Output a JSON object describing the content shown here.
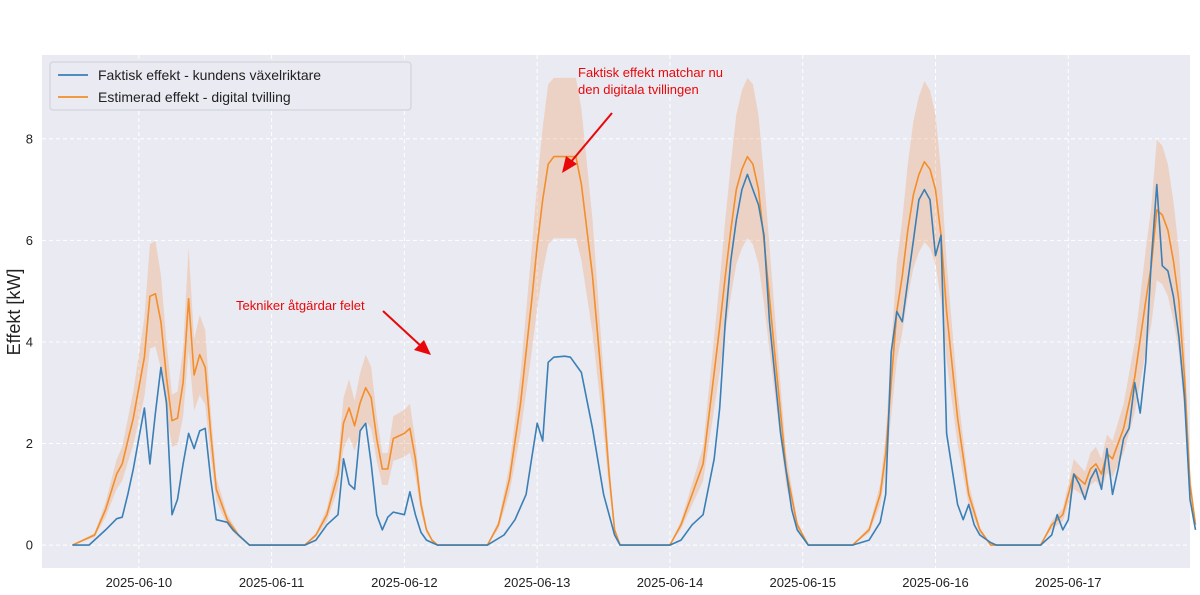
{
  "chart_data": {
    "type": "line",
    "title": "",
    "xlabel": "",
    "ylabel": "Effekt [kW]",
    "x_ticks": [
      "2025-06-10",
      "2025-06-11",
      "2025-06-12",
      "2025-06-13",
      "2025-06-14",
      "2025-06-15",
      "2025-06-16",
      "2025-06-17"
    ],
    "y_ticks": [
      0,
      2,
      4,
      6,
      8
    ],
    "ylim": [
      -0.45,
      9.65
    ],
    "xlim": [
      "2025-06-09 06:30",
      "2025-06-17 22:00"
    ],
    "grid": true,
    "legend_position": "top-left",
    "colors": {
      "actual": "#3a7fb5",
      "estimated": "#f28e2b",
      "band": "#f2a773",
      "background": "#eaeaf2",
      "annotation": "#e8080a"
    },
    "series": [
      {
        "name": "Faktisk effekt - kundens växelriktare",
        "points": [
          [
            "2025-06-09 12:00",
            0
          ],
          [
            "2025-06-09 15:00",
            0
          ],
          [
            "2025-06-09 18:00",
            0.3
          ],
          [
            "2025-06-09 20:00",
            0.52
          ],
          [
            "2025-06-09 21:00",
            0.55
          ],
          [
            "2025-06-09 22:00",
            1.0
          ],
          [
            "2025-06-09 23:00",
            1.5
          ],
          [
            "2025-06-10 00:00",
            2.1
          ],
          [
            "2025-06-10 01:00",
            2.7
          ],
          [
            "2025-06-10 02:00",
            1.6
          ],
          [
            "2025-06-10 03:00",
            2.6
          ],
          [
            "2025-06-10 04:00",
            3.5
          ],
          [
            "2025-06-10 05:00",
            2.8
          ],
          [
            "2025-06-10 06:00",
            0.6
          ],
          [
            "2025-06-10 07:00",
            0.9
          ],
          [
            "2025-06-10 08:00",
            1.6
          ],
          [
            "2025-06-10 09:00",
            2.2
          ],
          [
            "2025-06-10 10:00",
            1.9
          ],
          [
            "2025-06-10 11:00",
            2.25
          ],
          [
            "2025-06-10 12:00",
            2.3
          ],
          [
            "2025-06-10 13:00",
            1.3
          ],
          [
            "2025-06-10 14:00",
            0.5
          ],
          [
            "2025-06-10 16:00",
            0.45
          ],
          [
            "2025-06-10 17:00",
            0.3
          ],
          [
            "2025-06-10 19:00",
            0.1
          ],
          [
            "2025-06-10 20:00",
            0
          ],
          [
            "2025-06-10 21:00",
            0
          ],
          [
            "2025-06-11 06:00",
            0
          ],
          [
            "2025-06-11 08:00",
            0.1
          ],
          [
            "2025-06-11 10:00",
            0.4
          ],
          [
            "2025-06-11 12:00",
            0.6
          ],
          [
            "2025-06-11 13:00",
            1.7
          ],
          [
            "2025-06-11 14:00",
            1.2
          ],
          [
            "2025-06-11 15:00",
            1.1
          ],
          [
            "2025-06-11 16:00",
            2.25
          ],
          [
            "2025-06-11 17:00",
            2.4
          ],
          [
            "2025-06-11 18:00",
            1.6
          ],
          [
            "2025-06-11 19:00",
            0.6
          ],
          [
            "2025-06-11 20:00",
            0.3
          ],
          [
            "2025-06-11 21:00",
            0.55
          ],
          [
            "2025-06-11 22:00",
            0.65
          ],
          [
            "2025-06-12 00:00",
            0.6
          ],
          [
            "2025-06-12 01:00",
            1.05
          ],
          [
            "2025-06-12 02:00",
            0.6
          ],
          [
            "2025-06-12 03:00",
            0.25
          ],
          [
            "2025-06-12 04:00",
            0.1
          ],
          [
            "2025-06-12 05:00",
            0.05
          ],
          [
            "2025-06-12 06:00",
            0
          ],
          [
            "2025-06-12 15:00",
            0
          ],
          [
            "2025-06-12 18:00",
            0.2
          ],
          [
            "2025-06-12 20:00",
            0.5
          ],
          [
            "2025-06-12 22:00",
            1.0
          ],
          [
            "2025-06-12 23:00",
            1.7
          ],
          [
            "2025-06-13 00:00",
            2.4
          ],
          [
            "2025-06-13 01:00",
            2.05
          ],
          [
            "2025-06-13 02:00",
            3.6
          ],
          [
            "2025-06-13 03:00",
            3.7
          ],
          [
            "2025-06-13 05:00",
            3.72
          ],
          [
            "2025-06-13 06:00",
            3.7
          ],
          [
            "2025-06-13 08:00",
            3.4
          ],
          [
            "2025-06-13 10:00",
            2.3
          ],
          [
            "2025-06-13 12:00",
            1.0
          ],
          [
            "2025-06-13 14:00",
            0.2
          ],
          [
            "2025-06-13 15:00",
            0
          ],
          [
            "2025-06-14 00:00",
            0
          ],
          [
            "2025-06-14 02:00",
            0.1
          ],
          [
            "2025-06-14 04:00",
            0.4
          ],
          [
            "2025-06-14 06:00",
            0.6
          ],
          [
            "2025-06-14 08:00",
            1.7
          ],
          [
            "2025-06-14 09:00",
            2.7
          ],
          [
            "2025-06-14 10:00",
            4.4
          ],
          [
            "2025-06-14 11:00",
            5.6
          ],
          [
            "2025-06-14 12:00",
            6.4
          ],
          [
            "2025-06-14 13:00",
            7.0
          ],
          [
            "2025-06-14 14:00",
            7.3
          ],
          [
            "2025-06-14 15:00",
            7.0
          ],
          [
            "2025-06-14 16:00",
            6.7
          ],
          [
            "2025-06-14 17:00",
            6.1
          ],
          [
            "2025-06-14 18:00",
            4.4
          ],
          [
            "2025-06-14 20:00",
            2.2
          ],
          [
            "2025-06-14 22:00",
            0.7
          ],
          [
            "2025-06-14 23:00",
            0.3
          ],
          [
            "2025-06-15 01:00",
            0
          ],
          [
            "2025-06-15 09:00",
            0
          ],
          [
            "2025-06-15 12:00",
            0.1
          ],
          [
            "2025-06-15 14:00",
            0.45
          ],
          [
            "2025-06-15 15:00",
            1.0
          ],
          [
            "2025-06-15 16:00",
            3.8
          ],
          [
            "2025-06-15 17:00",
            4.6
          ],
          [
            "2025-06-15 18:00",
            4.4
          ],
          [
            "2025-06-15 19:00",
            5.2
          ],
          [
            "2025-06-15 20:00",
            6.0
          ],
          [
            "2025-06-15 21:00",
            6.8
          ],
          [
            "2025-06-15 22:00",
            7.0
          ],
          [
            "2025-06-15 23:00",
            6.8
          ],
          [
            "2025-06-16 00:00",
            5.7
          ],
          [
            "2025-06-16 01:00",
            6.1
          ],
          [
            "2025-06-16 02:00",
            2.2
          ],
          [
            "2025-06-16 03:00",
            1.5
          ],
          [
            "2025-06-16 04:00",
            0.8
          ],
          [
            "2025-06-16 05:00",
            0.5
          ],
          [
            "2025-06-16 06:00",
            0.8
          ],
          [
            "2025-06-16 07:00",
            0.4
          ],
          [
            "2025-06-16 08:00",
            0.2
          ],
          [
            "2025-06-16 10:00",
            0.05
          ],
          [
            "2025-06-16 11:00",
            0
          ],
          [
            "2025-06-16 19:00",
            0
          ],
          [
            "2025-06-16 21:00",
            0.2
          ],
          [
            "2025-06-16 22:00",
            0.6
          ],
          [
            "2025-06-16 23:00",
            0.3
          ],
          [
            "2025-06-17 00:00",
            0.5
          ],
          [
            "2025-06-17 01:00",
            1.4
          ],
          [
            "2025-06-17 02:00",
            1.2
          ],
          [
            "2025-06-17 03:00",
            0.9
          ],
          [
            "2025-06-17 04:00",
            1.3
          ],
          [
            "2025-06-17 05:00",
            1.5
          ],
          [
            "2025-06-17 06:00",
            1.1
          ],
          [
            "2025-06-17 07:00",
            1.9
          ],
          [
            "2025-06-17 08:00",
            1.0
          ],
          [
            "2025-06-17 09:00",
            1.5
          ],
          [
            "2025-06-17 10:00",
            2.1
          ],
          [
            "2025-06-17 11:00",
            2.3
          ],
          [
            "2025-06-17 12:00",
            3.2
          ],
          [
            "2025-06-17 13:00",
            2.6
          ],
          [
            "2025-06-17 14:00",
            3.6
          ],
          [
            "2025-06-17 15:00",
            5.6
          ],
          [
            "2025-06-17 16:00",
            7.1
          ],
          [
            "2025-06-17 17:00",
            5.5
          ],
          [
            "2025-06-17 18:00",
            5.4
          ],
          [
            "2025-06-17 19:00",
            4.9
          ],
          [
            "2025-06-17 20:00",
            4.1
          ],
          [
            "2025-06-17 21:00",
            2.9
          ],
          [
            "2025-06-17 22:00",
            0.9
          ],
          [
            "2025-06-17 23:00",
            0.3
          ]
        ]
      },
      {
        "name": "Estimerad effekt - digital tvilling",
        "band": "min/max interval",
        "points": [
          [
            "2025-06-09 12:00",
            0
          ],
          [
            "2025-06-09 16:00",
            0.2
          ],
          [
            "2025-06-09 18:00",
            0.7
          ],
          [
            "2025-06-09 20:00",
            1.4
          ],
          [
            "2025-06-09 21:00",
            1.6
          ],
          [
            "2025-06-09 23:00",
            2.5
          ],
          [
            "2025-06-10 01:00",
            3.7
          ],
          [
            "2025-06-10 02:00",
            4.9
          ],
          [
            "2025-06-10 03:00",
            4.95
          ],
          [
            "2025-06-10 04:00",
            4.4
          ],
          [
            "2025-06-10 05:00",
            3.3
          ],
          [
            "2025-06-10 06:00",
            2.45
          ],
          [
            "2025-06-10 07:00",
            2.5
          ],
          [
            "2025-06-10 08:00",
            3.2
          ],
          [
            "2025-06-10 09:00",
            4.85
          ],
          [
            "2025-06-10 10:00",
            3.35
          ],
          [
            "2025-06-10 11:00",
            3.75
          ],
          [
            "2025-06-10 12:00",
            3.5
          ],
          [
            "2025-06-10 13:00",
            2.2
          ],
          [
            "2025-06-10 14:00",
            1.1
          ],
          [
            "2025-06-10 16:00",
            0.5
          ],
          [
            "2025-06-10 18:00",
            0.2
          ],
          [
            "2025-06-10 20:00",
            0
          ],
          [
            "2025-06-11 06:00",
            0
          ],
          [
            "2025-06-11 08:00",
            0.2
          ],
          [
            "2025-06-11 10:00",
            0.6
          ],
          [
            "2025-06-11 12:00",
            1.4
          ],
          [
            "2025-06-11 13:00",
            2.4
          ],
          [
            "2025-06-11 14:00",
            2.7
          ],
          [
            "2025-06-11 15:00",
            2.35
          ],
          [
            "2025-06-11 16:00",
            2.8
          ],
          [
            "2025-06-11 17:00",
            3.1
          ],
          [
            "2025-06-11 18:00",
            2.9
          ],
          [
            "2025-06-11 19:00",
            2.1
          ],
          [
            "2025-06-11 20:00",
            1.5
          ],
          [
            "2025-06-11 21:00",
            1.5
          ],
          [
            "2025-06-11 22:00",
            2.1
          ],
          [
            "2025-06-12 00:00",
            2.2
          ],
          [
            "2025-06-12 01:00",
            2.3
          ],
          [
            "2025-06-12 02:00",
            1.7
          ],
          [
            "2025-06-12 03:00",
            0.8
          ],
          [
            "2025-06-12 04:00",
            0.3
          ],
          [
            "2025-06-12 05:00",
            0.1
          ],
          [
            "2025-06-12 06:00",
            0
          ],
          [
            "2025-06-12 15:00",
            0
          ],
          [
            "2025-06-12 17:00",
            0.4
          ],
          [
            "2025-06-12 19:00",
            1.3
          ],
          [
            "2025-06-12 21:00",
            2.8
          ],
          [
            "2025-06-12 23:00",
            4.8
          ],
          [
            "2025-06-13 00:00",
            5.9
          ],
          [
            "2025-06-13 01:00",
            6.8
          ],
          [
            "2025-06-13 02:00",
            7.5
          ],
          [
            "2025-06-13 03:00",
            7.65
          ],
          [
            "2025-06-13 07:00",
            7.65
          ],
          [
            "2025-06-13 08:00",
            7.1
          ],
          [
            "2025-06-13 10:00",
            5.3
          ],
          [
            "2025-06-13 12:00",
            2.8
          ],
          [
            "2025-06-13 13:00",
            1.4
          ],
          [
            "2025-06-13 14:00",
            0.3
          ],
          [
            "2025-06-13 15:00",
            0
          ],
          [
            "2025-06-14 00:00",
            0
          ],
          [
            "2025-06-14 02:00",
            0.4
          ],
          [
            "2025-06-14 04:00",
            1.0
          ],
          [
            "2025-06-14 06:00",
            1.6
          ],
          [
            "2025-06-14 08:00",
            3.4
          ],
          [
            "2025-06-14 09:00",
            4.3
          ],
          [
            "2025-06-14 10:00",
            5.3
          ],
          [
            "2025-06-14 11:00",
            6.2
          ],
          [
            "2025-06-14 12:00",
            7.0
          ],
          [
            "2025-06-14 13:00",
            7.4
          ],
          [
            "2025-06-14 14:00",
            7.65
          ],
          [
            "2025-06-14 15:00",
            7.5
          ],
          [
            "2025-06-14 16:00",
            7.0
          ],
          [
            "2025-06-14 17:00",
            6.0
          ],
          [
            "2025-06-14 19:00",
            3.7
          ],
          [
            "2025-06-14 21:00",
            1.5
          ],
          [
            "2025-06-14 23:00",
            0.4
          ],
          [
            "2025-06-15 01:00",
            0
          ],
          [
            "2025-06-15 09:00",
            0
          ],
          [
            "2025-06-15 12:00",
            0.3
          ],
          [
            "2025-06-15 14:00",
            1.0
          ],
          [
            "2025-06-15 15:00",
            1.8
          ],
          [
            "2025-06-15 16:00",
            3.2
          ],
          [
            "2025-06-15 17:00",
            4.6
          ],
          [
            "2025-06-15 18:00",
            5.3
          ],
          [
            "2025-06-15 19:00",
            6.2
          ],
          [
            "2025-06-15 20:00",
            6.9
          ],
          [
            "2025-06-15 21:00",
            7.3
          ],
          [
            "2025-06-15 22:00",
            7.55
          ],
          [
            "2025-06-15 23:00",
            7.4
          ],
          [
            "2025-06-16 00:00",
            7.0
          ],
          [
            "2025-06-16 01:00",
            6.1
          ],
          [
            "2025-06-16 02:00",
            4.6
          ],
          [
            "2025-06-16 04:00",
            2.5
          ],
          [
            "2025-06-16 06:00",
            1.0
          ],
          [
            "2025-06-16 08:00",
            0.3
          ],
          [
            "2025-06-16 10:00",
            0
          ],
          [
            "2025-06-16 19:00",
            0
          ],
          [
            "2025-06-16 21:00",
            0.4
          ],
          [
            "2025-06-16 23:00",
            0.6
          ],
          [
            "2025-06-17 00:00",
            1.0
          ],
          [
            "2025-06-17 01:00",
            1.4
          ],
          [
            "2025-06-17 02:00",
            1.3
          ],
          [
            "2025-06-17 03:00",
            1.2
          ],
          [
            "2025-06-17 04:00",
            1.5
          ],
          [
            "2025-06-17 05:00",
            1.6
          ],
          [
            "2025-06-17 06:00",
            1.4
          ],
          [
            "2025-06-17 07:00",
            1.8
          ],
          [
            "2025-06-17 08:00",
            1.7
          ],
          [
            "2025-06-17 10:00",
            2.3
          ],
          [
            "2025-06-17 12:00",
            3.3
          ],
          [
            "2025-06-17 14:00",
            4.8
          ],
          [
            "2025-06-17 15:00",
            5.5
          ],
          [
            "2025-06-17 16:00",
            6.6
          ],
          [
            "2025-06-17 17:00",
            6.5
          ],
          [
            "2025-06-17 18:00",
            6.2
          ],
          [
            "2025-06-17 19:00",
            5.6
          ],
          [
            "2025-06-17 20:00",
            4.8
          ],
          [
            "2025-06-17 21:00",
            3.3
          ],
          [
            "2025-06-17 22:00",
            1.2
          ],
          [
            "2025-06-17 23:00",
            0.4
          ]
        ]
      }
    ],
    "annotations": [
      {
        "text": "Tekniker åtgärdar felet",
        "target": [
          "2025-06-12 07:00",
          3.72
        ]
      },
      {
        "text": "Faktisk effekt matchar nu\nden digitala tvillingen",
        "target": [
          "2025-06-13 07:00",
          7.4
        ]
      }
    ]
  }
}
